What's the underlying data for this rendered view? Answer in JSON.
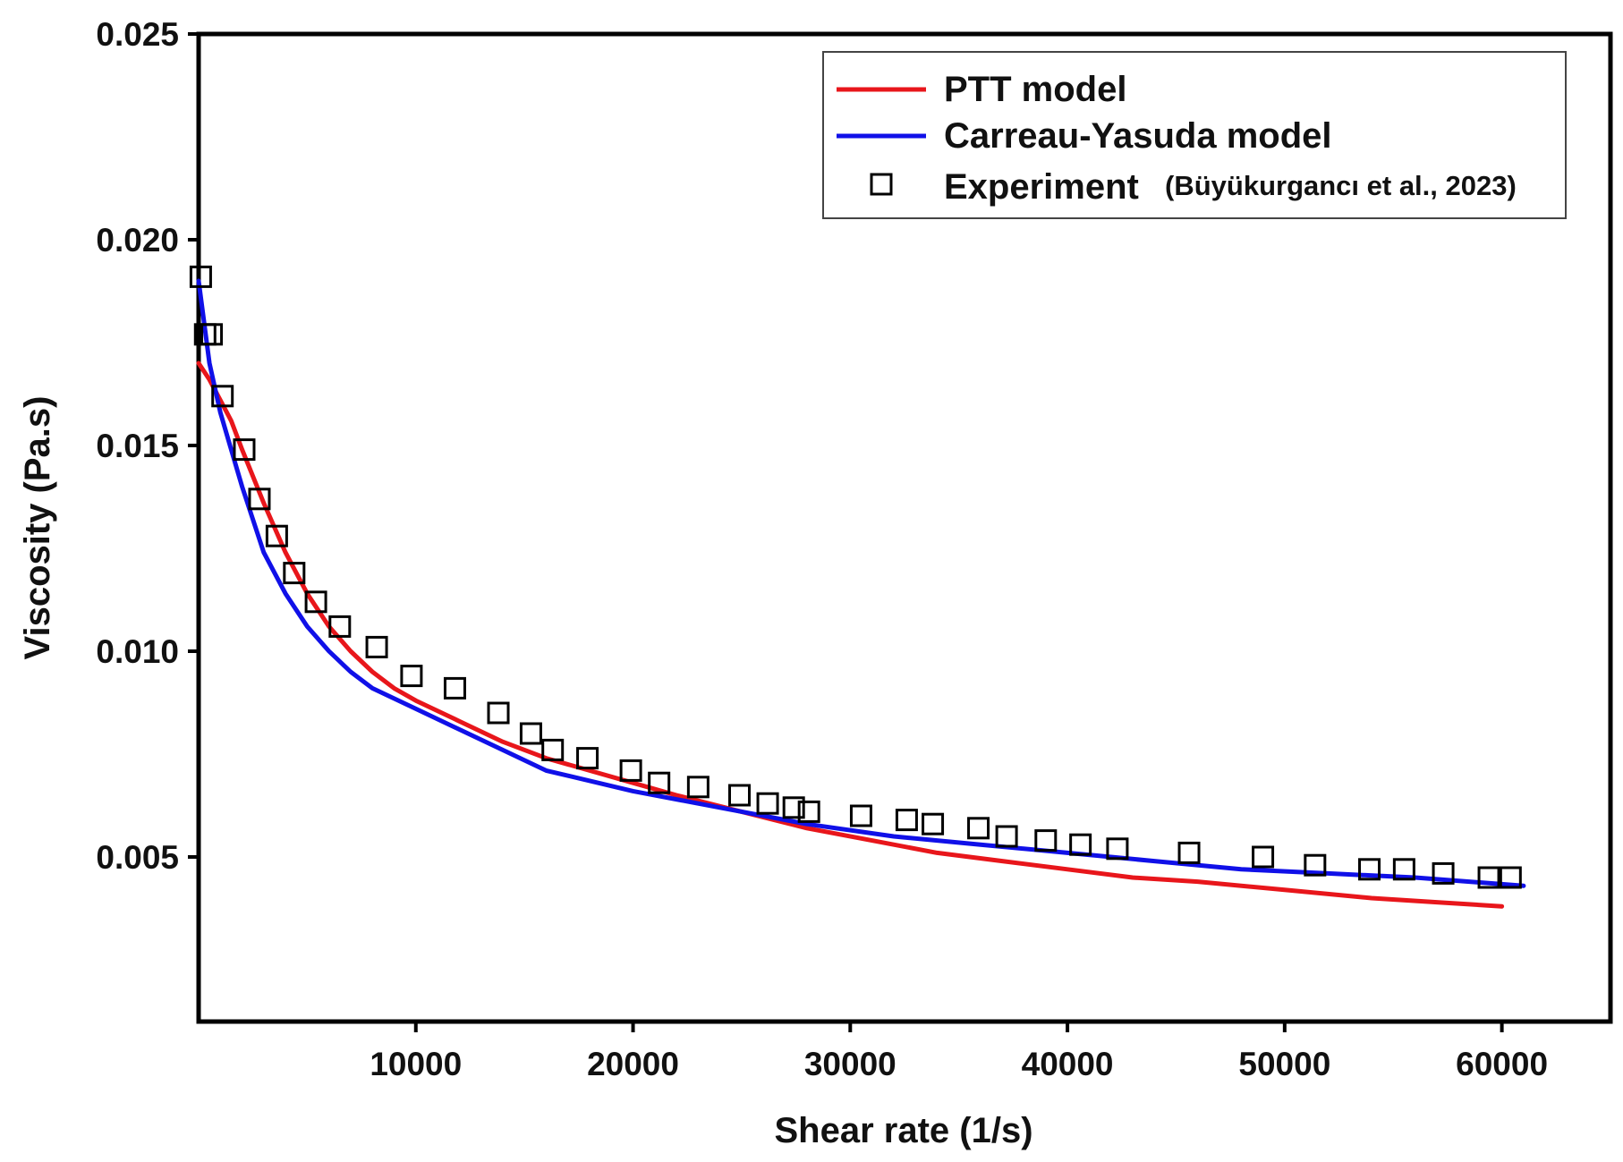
{
  "chart_data": {
    "type": "line",
    "title": "",
    "xlabel": "Shear rate (1/s)",
    "ylabel": "Viscosity (Pa.s)",
    "xlim": [
      0,
      65000
    ],
    "ylim": [
      0.001,
      0.025
    ],
    "x_ticks": [
      10000,
      20000,
      30000,
      40000,
      50000,
      60000
    ],
    "x_tick_labels": [
      "10000",
      "20000",
      "30000",
      "40000",
      "50000",
      "60000"
    ],
    "y_ticks": [
      0.005,
      0.01,
      0.015,
      0.02,
      0.025
    ],
    "y_tick_labels": [
      "0.005",
      "0.010",
      "0.015",
      "0.020",
      "0.025"
    ],
    "grid": false,
    "legend_position": "top-right",
    "legend": {
      "ptt": "PTT model",
      "carreau": "Carreau-Yasuda model",
      "experiment": "Experiment",
      "experiment_source": "(Büyükurgancı et al., 2023)"
    },
    "series": [
      {
        "name": "PTT model",
        "kind": "line",
        "color": "#e8161b",
        "x": [
          0,
          500,
          1000,
          1500,
          2000,
          3000,
          4000,
          5000,
          6000,
          7000,
          8000,
          9000,
          10000,
          12000,
          14000,
          16000,
          18000,
          20000,
          22000,
          25000,
          28000,
          31000,
          34000,
          37000,
          40000,
          43000,
          46000,
          50000,
          54000,
          57000,
          60000
        ],
        "y": [
          0.017,
          0.0166,
          0.0161,
          0.0156,
          0.0149,
          0.0136,
          0.0124,
          0.0114,
          0.0106,
          0.01,
          0.0095,
          0.0091,
          0.0088,
          0.0083,
          0.0078,
          0.0074,
          0.0071,
          0.0068,
          0.0065,
          0.0061,
          0.0057,
          0.0054,
          0.0051,
          0.0049,
          0.0047,
          0.0045,
          0.0044,
          0.0042,
          0.004,
          0.0039,
          0.0038
        ]
      },
      {
        "name": "Carreau-Yasuda model",
        "kind": "line",
        "color": "#1010e8",
        "x": [
          0,
          500,
          1000,
          1500,
          2000,
          3000,
          4000,
          5000,
          6000,
          7000,
          8000,
          10000,
          12000,
          14000,
          16000,
          20000,
          24000,
          28000,
          32000,
          36000,
          40000,
          44000,
          48000,
          52000,
          56000,
          61000
        ],
        "y": [
          0.019,
          0.017,
          0.0158,
          0.0149,
          0.014,
          0.0124,
          0.0114,
          0.0106,
          0.01,
          0.0095,
          0.0091,
          0.0086,
          0.0081,
          0.0076,
          0.0071,
          0.0066,
          0.0062,
          0.0058,
          0.0055,
          0.0053,
          0.0051,
          0.0049,
          0.0047,
          0.0046,
          0.0045,
          0.0043
        ]
      },
      {
        "name": "Experiment",
        "kind": "scatter",
        "marker": "open-square",
        "x": [
          100,
          300,
          600,
          1100,
          2100,
          2800,
          3600,
          4400,
          5400,
          6500,
          8200,
          9800,
          11800,
          13800,
          15300,
          16300,
          17900,
          19900,
          21200,
          23000,
          24900,
          26200,
          27400,
          28100,
          30500,
          32600,
          33800,
          35900,
          37200,
          39000,
          40600,
          42300,
          45600,
          49000,
          51400,
          53900,
          55500,
          57300,
          59400,
          60400
        ],
        "y": [
          0.0191,
          0.0177,
          0.0177,
          0.0162,
          0.0149,
          0.0137,
          0.0128,
          0.0119,
          0.0112,
          0.0106,
          0.0101,
          0.0094,
          0.0091,
          0.0085,
          0.008,
          0.0076,
          0.0074,
          0.0071,
          0.0068,
          0.0067,
          0.0065,
          0.0063,
          0.0062,
          0.0061,
          0.006,
          0.0059,
          0.0058,
          0.0057,
          0.0055,
          0.0054,
          0.0053,
          0.0052,
          0.0051,
          0.005,
          0.0048,
          0.0047,
          0.0047,
          0.0046,
          0.0045,
          0.0045
        ]
      }
    ]
  }
}
